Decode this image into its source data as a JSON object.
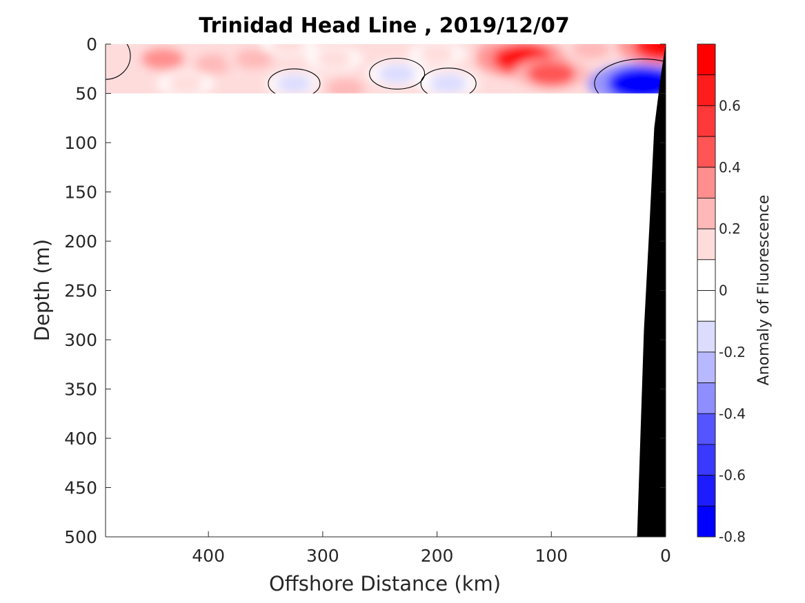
{
  "chart_data": {
    "type": "heatmap",
    "title": "Trinidad Head Line , 2019/12/07",
    "xlabel": "Offshore Distance (km)",
    "ylabel": "Depth (m)",
    "colorbar_label": "Anomaly of Fluorescence",
    "x_reversed": true,
    "y_reversed": true,
    "xlim": [
      490,
      0
    ],
    "ylim": [
      0,
      500
    ],
    "x_ticks": [
      400,
      300,
      200,
      100,
      0
    ],
    "x_tick_labels": [
      "400",
      "300",
      "200",
      "100",
      "0"
    ],
    "y_ticks": [
      0,
      50,
      100,
      150,
      200,
      250,
      300,
      350,
      400,
      450,
      500
    ],
    "y_tick_labels": [
      "0",
      "50",
      "100",
      "150",
      "200",
      "250",
      "300",
      "350",
      "400",
      "450",
      "500"
    ],
    "colorbar_range": [
      -0.8,
      0.8
    ],
    "colorbar_ticks": [
      0.6,
      0.4,
      0.2,
      0,
      -0.2,
      -0.4,
      -0.6,
      -0.8
    ],
    "colorbar_tick_labels": [
      "0.6",
      "0.4",
      "0.2",
      "0",
      "-0.2",
      "-0.4",
      "-0.6",
      "-0.8"
    ],
    "colorbar_levels": [
      {
        "low": 0.7,
        "high": 0.8,
        "color": "#ff0000"
      },
      {
        "low": 0.6,
        "high": 0.7,
        "color": "#ff1c1c"
      },
      {
        "low": 0.5,
        "high": 0.6,
        "color": "#ff3939"
      },
      {
        "low": 0.4,
        "high": 0.5,
        "color": "#ff5555"
      },
      {
        "low": 0.3,
        "high": 0.4,
        "color": "#ff8e8e"
      },
      {
        "low": 0.2,
        "high": 0.3,
        "color": "#ffb8b8"
      },
      {
        "low": 0.1,
        "high": 0.2,
        "color": "#ffdcdc"
      },
      {
        "low": 0.0,
        "high": 0.1,
        "color": "#ffffff"
      },
      {
        "low": -0.1,
        "high": 0.0,
        "color": "#ffffff"
      },
      {
        "low": -0.2,
        "high": -0.1,
        "color": "#dcdcff"
      },
      {
        "low": -0.3,
        "high": -0.2,
        "color": "#b8b8ff"
      },
      {
        "low": -0.4,
        "high": -0.3,
        "color": "#8e8eff"
      },
      {
        "low": -0.5,
        "high": -0.4,
        "color": "#5555ff"
      },
      {
        "low": -0.6,
        "high": -0.5,
        "color": "#3939ff"
      },
      {
        "low": -0.7,
        "high": -0.6,
        "color": "#1c1cff"
      },
      {
        "low": -0.8,
        "high": -0.7,
        "color": "#0000ff"
      }
    ],
    "data_depth_range": [
      0,
      50
    ],
    "anomaly_features": [
      {
        "x_km": 440,
        "depth_m": 15,
        "value": 0.3
      },
      {
        "x_km": 420,
        "depth_m": 40,
        "value": 0.15
      },
      {
        "x_km": 395,
        "depth_m": 20,
        "value": 0.2
      },
      {
        "x_km": 360,
        "depth_m": 15,
        "value": 0.2
      },
      {
        "x_km": 330,
        "depth_m": 0,
        "value": 0.15
      },
      {
        "x_km": 325,
        "depth_m": 40,
        "value": -0.15
      },
      {
        "x_km": 290,
        "depth_m": 15,
        "value": 0.15
      },
      {
        "x_km": 280,
        "depth_m": 45,
        "value": 0.2
      },
      {
        "x_km": 235,
        "depth_m": 30,
        "value": -0.2
      },
      {
        "x_km": 200,
        "depth_m": 10,
        "value": 0.15
      },
      {
        "x_km": 190,
        "depth_m": 40,
        "value": -0.2
      },
      {
        "x_km": 150,
        "depth_m": 5,
        "value": 0.2
      },
      {
        "x_km": 125,
        "depth_m": 15,
        "value": 0.6
      },
      {
        "x_km": 100,
        "depth_m": 30,
        "value": 0.4
      },
      {
        "x_km": 65,
        "depth_m": 5,
        "value": 0.2
      },
      {
        "x_km": 20,
        "depth_m": 40,
        "value": -0.8
      },
      {
        "x_km": 2,
        "depth_m": 2,
        "value": 0.6
      }
    ],
    "bathymetry": [
      [
        0,
        0
      ],
      [
        4,
        30
      ],
      [
        10,
        85
      ],
      [
        14,
        180
      ],
      [
        19,
        290
      ],
      [
        25,
        500
      ]
    ]
  }
}
